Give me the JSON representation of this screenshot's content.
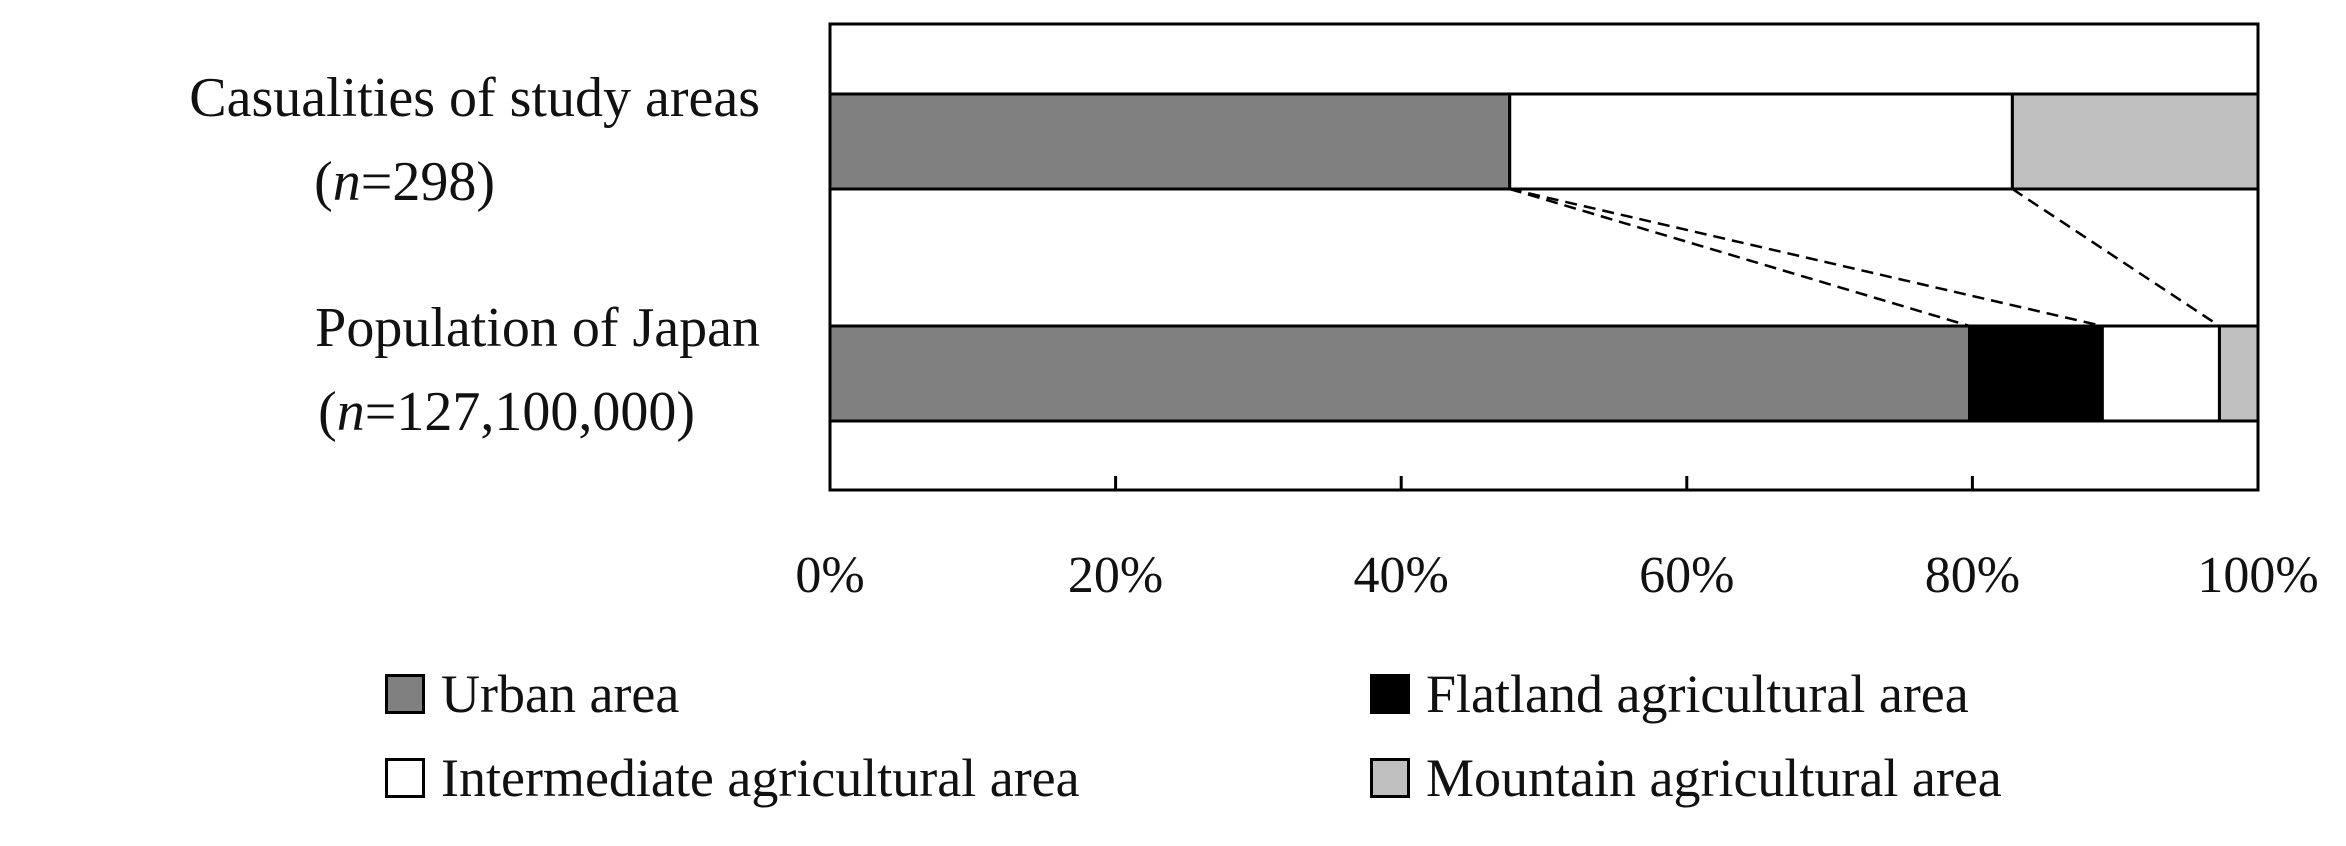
{
  "chart_data": {
    "type": "bar",
    "orientation": "horizontal",
    "stacked": true,
    "percent_scale": true,
    "categories": [
      {
        "line1": "Casualities of study areas",
        "line2_n": "n",
        "line2_rest": "=298)"
      },
      {
        "line1": "Population of Japan",
        "line2_n": "n",
        "line2_rest": "=127,100,000)"
      }
    ],
    "series": [
      {
        "name": "Urban area",
        "color": "#808080",
        "values": [
          47.6,
          79.8
        ]
      },
      {
        "name": "Flatland agricultural area",
        "color": "#000000",
        "values": [
          0,
          9.3
        ]
      },
      {
        "name": "Intermediate agricultural area",
        "color": "#ffffff",
        "values": [
          35.2,
          8.2
        ]
      },
      {
        "name": "Mountain agricultural area",
        "color": "#c0c0c0",
        "values": [
          17.2,
          2.7
        ]
      }
    ],
    "x_ticks": [
      "0%",
      "20%",
      "40%",
      "60%",
      "80%",
      "100%"
    ],
    "xlim": [
      0,
      100
    ],
    "grid": false,
    "legend_position": "bottom",
    "connector_lines": "dashed"
  }
}
